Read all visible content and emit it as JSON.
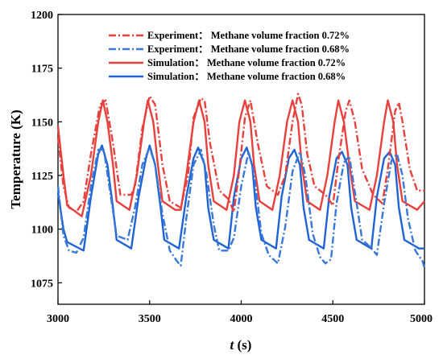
{
  "chart_data": {
    "type": "line",
    "xlabel_var": "t",
    "xlabel_unit": " (s)",
    "ylabel": "Temperature (K)",
    "xlim": [
      3000,
      5000
    ],
    "ylim": [
      1065,
      1200
    ],
    "x_ticks": [
      "3000",
      "3500",
      "4000",
      "4500",
      "5000"
    ],
    "y_ticks": [
      "1075",
      "1100",
      "1125",
      "1150",
      "1175",
      "1200"
    ],
    "x_tick_values": [
      3000,
      3500,
      4000,
      4500,
      5000
    ],
    "y_tick_values": [
      1075,
      1100,
      1125,
      1150,
      1175,
      1200
    ],
    "grid": false,
    "legend_position": "top-center",
    "series": [
      {
        "name": "Experiment： Methane volume fraction  0.72%",
        "color": "#e8403c",
        "style": "dashdot",
        "points": [
          [
            3000,
            1143
          ],
          [
            3030,
            1120
          ],
          [
            3060,
            1110
          ],
          [
            3100,
            1108
          ],
          [
            3140,
            1113
          ],
          [
            3180,
            1135
          ],
          [
            3230,
            1158
          ],
          [
            3260,
            1160
          ],
          [
            3300,
            1140
          ],
          [
            3340,
            1116
          ],
          [
            3400,
            1116
          ],
          [
            3420,
            1120
          ],
          [
            3460,
            1147
          ],
          [
            3500,
            1162
          ],
          [
            3530,
            1158
          ],
          [
            3570,
            1130
          ],
          [
            3610,
            1113
          ],
          [
            3670,
            1110
          ],
          [
            3710,
            1125
          ],
          [
            3740,
            1152
          ],
          [
            3780,
            1161
          ],
          [
            3800,
            1160
          ],
          [
            3830,
            1140
          ],
          [
            3880,
            1118
          ],
          [
            3930,
            1114
          ],
          [
            3960,
            1108
          ],
          [
            3990,
            1128
          ],
          [
            4020,
            1152
          ],
          [
            4050,
            1160
          ],
          [
            4090,
            1140
          ],
          [
            4140,
            1120
          ],
          [
            4200,
            1116
          ],
          [
            4240,
            1125
          ],
          [
            4280,
            1150
          ],
          [
            4310,
            1163
          ],
          [
            4330,
            1158
          ],
          [
            4360,
            1135
          ],
          [
            4400,
            1120
          ],
          [
            4460,
            1116
          ],
          [
            4500,
            1111
          ],
          [
            4530,
            1132
          ],
          [
            4570,
            1155
          ],
          [
            4590,
            1160
          ],
          [
            4620,
            1150
          ],
          [
            4660,
            1128
          ],
          [
            4720,
            1116
          ],
          [
            4770,
            1112
          ],
          [
            4800,
            1128
          ],
          [
            4840,
            1155
          ],
          [
            4860,
            1159
          ],
          [
            4880,
            1150
          ],
          [
            4920,
            1128
          ],
          [
            4960,
            1118
          ],
          [
            5000,
            1118
          ]
        ]
      },
      {
        "name": "Experiment： Methane volume fraction  0.68%",
        "color": "#3a78d8",
        "style": "dashdot",
        "points": [
          [
            3000,
            1120
          ],
          [
            3030,
            1097
          ],
          [
            3060,
            1090
          ],
          [
            3100,
            1089
          ],
          [
            3140,
            1096
          ],
          [
            3180,
            1120
          ],
          [
            3220,
            1137
          ],
          [
            3250,
            1137
          ],
          [
            3280,
            1120
          ],
          [
            3320,
            1097
          ],
          [
            3380,
            1095
          ],
          [
            3420,
            1110
          ],
          [
            3460,
            1130
          ],
          [
            3500,
            1138
          ],
          [
            3530,
            1130
          ],
          [
            3570,
            1107
          ],
          [
            3610,
            1090
          ],
          [
            3650,
            1085
          ],
          [
            3670,
            1083
          ],
          [
            3700,
            1105
          ],
          [
            3740,
            1130
          ],
          [
            3780,
            1137
          ],
          [
            3810,
            1126
          ],
          [
            3850,
            1102
          ],
          [
            3880,
            1090
          ],
          [
            3930,
            1090
          ],
          [
            3960,
            1096
          ],
          [
            4000,
            1120
          ],
          [
            4040,
            1136
          ],
          [
            4070,
            1126
          ],
          [
            4110,
            1098
          ],
          [
            4150,
            1088
          ],
          [
            4200,
            1084
          ],
          [
            4240,
            1101
          ],
          [
            4280,
            1127
          ],
          [
            4320,
            1136
          ],
          [
            4350,
            1125
          ],
          [
            4390,
            1098
          ],
          [
            4430,
            1087
          ],
          [
            4460,
            1084
          ],
          [
            4490,
            1086
          ],
          [
            4520,
            1112
          ],
          [
            4560,
            1131
          ],
          [
            4590,
            1134
          ],
          [
            4630,
            1112
          ],
          [
            4660,
            1095
          ],
          [
            4700,
            1092
          ],
          [
            4740,
            1088
          ],
          [
            4780,
            1112
          ],
          [
            4820,
            1132
          ],
          [
            4850,
            1135
          ],
          [
            4880,
            1125
          ],
          [
            4910,
            1105
          ],
          [
            4950,
            1090
          ],
          [
            4990,
            1085
          ],
          [
            5000,
            1082
          ]
        ]
      },
      {
        "name": "Simulation： Methane volume fraction  0.72%",
        "color": "#e8403c",
        "style": "solid",
        "points": [
          [
            3000,
            1148
          ],
          [
            3030,
            1125
          ],
          [
            3050,
            1111
          ],
          [
            3130,
            1106
          ],
          [
            3180,
            1125
          ],
          [
            3220,
            1150
          ],
          [
            3245,
            1160
          ],
          [
            3270,
            1150
          ],
          [
            3300,
            1130
          ],
          [
            3320,
            1113
          ],
          [
            3390,
            1109
          ],
          [
            3430,
            1125
          ],
          [
            3470,
            1150
          ],
          [
            3490,
            1160
          ],
          [
            3520,
            1150
          ],
          [
            3545,
            1130
          ],
          [
            3570,
            1113
          ],
          [
            3640,
            1109
          ],
          [
            3670,
            1109
          ],
          [
            3700,
            1125
          ],
          [
            3740,
            1150
          ],
          [
            3770,
            1160
          ],
          [
            3800,
            1150
          ],
          [
            3820,
            1130
          ],
          [
            3850,
            1113
          ],
          [
            3920,
            1109
          ],
          [
            3960,
            1125
          ],
          [
            3990,
            1150
          ],
          [
            4020,
            1160
          ],
          [
            4050,
            1150
          ],
          [
            4070,
            1130
          ],
          [
            4100,
            1113
          ],
          [
            4170,
            1109
          ],
          [
            4210,
            1125
          ],
          [
            4250,
            1150
          ],
          [
            4280,
            1160
          ],
          [
            4310,
            1150
          ],
          [
            4330,
            1130
          ],
          [
            4360,
            1113
          ],
          [
            4430,
            1109
          ],
          [
            4470,
            1125
          ],
          [
            4510,
            1150
          ],
          [
            4530,
            1160
          ],
          [
            4560,
            1150
          ],
          [
            4590,
            1130
          ],
          [
            4620,
            1113
          ],
          [
            4700,
            1109
          ],
          [
            4740,
            1125
          ],
          [
            4780,
            1150
          ],
          [
            4800,
            1160
          ],
          [
            4830,
            1150
          ],
          [
            4850,
            1130
          ],
          [
            4880,
            1113
          ],
          [
            4960,
            1109
          ],
          [
            5000,
            1113
          ]
        ]
      },
      {
        "name": "Simulation： Methane volume fraction  0.68%",
        "color": "#1f63d4",
        "style": "solid",
        "points": [
          [
            3000,
            1117
          ],
          [
            3030,
            1100
          ],
          [
            3050,
            1094
          ],
          [
            3140,
            1090
          ],
          [
            3180,
            1115
          ],
          [
            3220,
            1135
          ],
          [
            3240,
            1139
          ],
          [
            3270,
            1130
          ],
          [
            3300,
            1110
          ],
          [
            3320,
            1095
          ],
          [
            3400,
            1091
          ],
          [
            3440,
            1115
          ],
          [
            3480,
            1133
          ],
          [
            3500,
            1139
          ],
          [
            3530,
            1130
          ],
          [
            3560,
            1110
          ],
          [
            3580,
            1095
          ],
          [
            3660,
            1091
          ],
          [
            3700,
            1115
          ],
          [
            3740,
            1133
          ],
          [
            3765,
            1138
          ],
          [
            3800,
            1130
          ],
          [
            3820,
            1110
          ],
          [
            3850,
            1095
          ],
          [
            3930,
            1091
          ],
          [
            3960,
            1115
          ],
          [
            4000,
            1133
          ],
          [
            4030,
            1138
          ],
          [
            4060,
            1130
          ],
          [
            4080,
            1110
          ],
          [
            4110,
            1095
          ],
          [
            4190,
            1091
          ],
          [
            4220,
            1115
          ],
          [
            4260,
            1133
          ],
          [
            4290,
            1137
          ],
          [
            4320,
            1130
          ],
          [
            4340,
            1110
          ],
          [
            4370,
            1095
          ],
          [
            4450,
            1091
          ],
          [
            4480,
            1115
          ],
          [
            4520,
            1133
          ],
          [
            4550,
            1136
          ],
          [
            4580,
            1130
          ],
          [
            4600,
            1110
          ],
          [
            4630,
            1095
          ],
          [
            4710,
            1091
          ],
          [
            4740,
            1115
          ],
          [
            4780,
            1133
          ],
          [
            4810,
            1136
          ],
          [
            4840,
            1130
          ],
          [
            4860,
            1110
          ],
          [
            4890,
            1095
          ],
          [
            4970,
            1091
          ],
          [
            5000,
            1091
          ]
        ]
      }
    ]
  }
}
